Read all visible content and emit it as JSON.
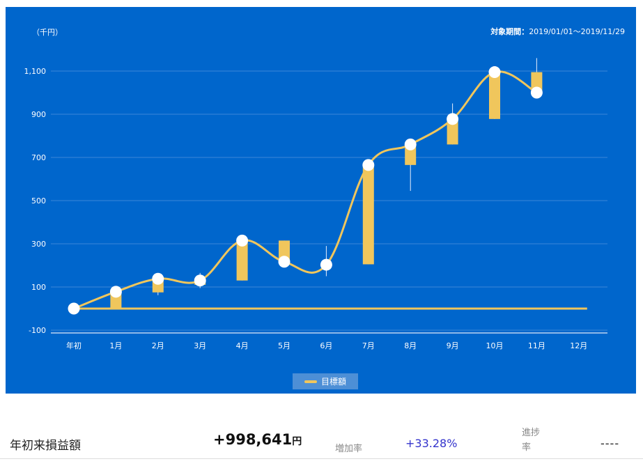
{
  "header": {
    "unit_label": "（千円）",
    "period_label": "対象期間：",
    "period_value": "2019/01/01～2019/11/29"
  },
  "chart_data": {
    "type": "candlestick_line",
    "categories": [
      "年初",
      "1月",
      "2月",
      "3月",
      "4月",
      "5月",
      "6月",
      "7月",
      "8月",
      "9月",
      "10月",
      "11月",
      "12月"
    ],
    "y_ticks": [
      -100,
      100,
      300,
      500,
      700,
      900,
      1100
    ],
    "ylim": [
      -110,
      1200
    ],
    "grid": true,
    "legend_position": "bottom",
    "target_series": {
      "name": "目標額",
      "values": [
        0,
        0,
        0,
        0,
        0,
        0,
        0,
        0,
        0,
        0,
        0,
        0,
        0
      ]
    },
    "profit_line": [
      0,
      78,
      138,
      130,
      315,
      217,
      203,
      665,
      760,
      878,
      1095,
      1000,
      null
    ],
    "candles": [
      null,
      {
        "open": 0,
        "close": 78,
        "high": 78,
        "low": 0
      },
      {
        "open": 75,
        "close": 138,
        "high": 138,
        "low": 62
      },
      {
        "open": 110,
        "close": 130,
        "high": 165,
        "low": 95
      },
      {
        "open": 130,
        "close": 315,
        "high": 315,
        "low": 130
      },
      {
        "open": 217,
        "close": 315,
        "high": 315,
        "low": 217
      },
      {
        "open": 203,
        "close": 203,
        "high": 290,
        "low": 150
      },
      {
        "open": 205,
        "close": 665,
        "high": 665,
        "low": 205
      },
      {
        "open": 665,
        "close": 760,
        "high": 760,
        "low": 545
      },
      {
        "open": 760,
        "close": 878,
        "high": 950,
        "low": 760
      },
      {
        "open": 878,
        "close": 1095,
        "high": 1095,
        "low": 878
      },
      {
        "open": 1000,
        "close": 1095,
        "high": 1160,
        "low": 1000
      },
      null
    ],
    "colors": {
      "background": "#0066cc",
      "candle": "#f0c65c",
      "line": "#f0c65c",
      "point": "#ffffff",
      "grid": "#3b86d8",
      "text": "#ffffff"
    }
  },
  "legend": {
    "label": "目標額"
  },
  "summary": {
    "label": "年初来損益額",
    "value": "+998,641",
    "unit": "円",
    "rate_label": "増加率",
    "rate_value": "+33.28%",
    "progress_label": "進捗率",
    "progress_value": "----"
  }
}
